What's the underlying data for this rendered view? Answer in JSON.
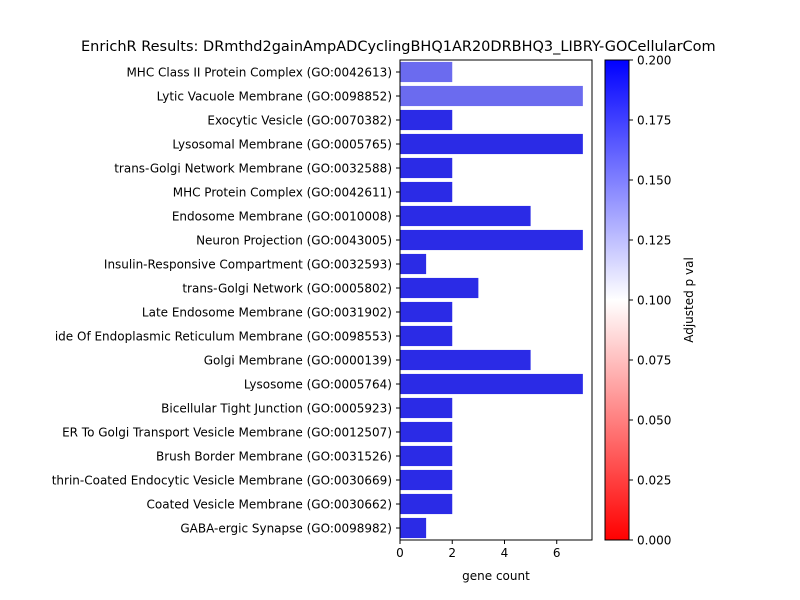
{
  "chart_data": {
    "type": "bar",
    "orientation": "horizontal",
    "title": "EnrichR Results: DRmthd2gainAmpADCyclingBHQ1AR20DRBHQ3_LIBRY-GOCellularCom",
    "xlabel": "gene count",
    "ylabel": "",
    "xlim": [
      0,
      7.35
    ],
    "xticks": [
      0,
      2,
      4,
      6
    ],
    "grid": false,
    "categories": [
      "MHC Class II Protein Complex (GO:0042613)",
      "Lytic Vacuole Membrane (GO:0098852)",
      "Exocytic Vesicle (GO:0070382)",
      "Lysosomal Membrane (GO:0005765)",
      "trans-Golgi Network Membrane (GO:0032588)",
      "MHC Protein Complex (GO:0042611)",
      "Endosome Membrane (GO:0010008)",
      "Neuron Projection (GO:0043005)",
      "Insulin-Responsive Compartment (GO:0032593)",
      "trans-Golgi Network (GO:0005802)",
      "Late Endosome Membrane (GO:0031902)",
      "ide Of Endoplasmic Reticulum Membrane (GO:0098553)",
      "Golgi Membrane (GO:0000139)",
      "Lysosome (GO:0005764)",
      "Bicellular Tight Junction (GO:0005923)",
      "ER To Golgi Transport Vesicle Membrane (GO:0012507)",
      "Brush Border Membrane (GO:0031526)",
      "thrin-Coated Endocytic Vesicle Membrane (GO:0030669)",
      "Coated Vesicle Membrane (GO:0030662)",
      "GABA-ergic Synapse (GO:0098982)"
    ],
    "values": [
      2,
      7,
      2,
      7,
      2,
      2,
      5,
      7,
      1,
      3,
      2,
      2,
      5,
      7,
      2,
      2,
      2,
      2,
      2,
      1
    ],
    "bar_colors": [
      "#6b6bef",
      "#6b6bef",
      "#2b2be6",
      "#2b2be6",
      "#2b2be6",
      "#2b2be6",
      "#2b2be6",
      "#2b2be6",
      "#2b2be6",
      "#2b2be6",
      "#2b2be6",
      "#2b2be6",
      "#2b2be6",
      "#2b2be6",
      "#2b2be6",
      "#2b2be6",
      "#2b2be6",
      "#2b2be6",
      "#2b2be6",
      "#2b2be6"
    ],
    "colorbar": {
      "label": "Adjusted p val",
      "range": [
        0,
        0.2
      ],
      "ticks": [
        "0.000",
        "0.025",
        "0.050",
        "0.075",
        "0.100",
        "0.125",
        "0.150",
        "0.175",
        "0.200"
      ],
      "colors": [
        "#ff0000",
        "#ffffff",
        "#0000ff"
      ]
    }
  }
}
